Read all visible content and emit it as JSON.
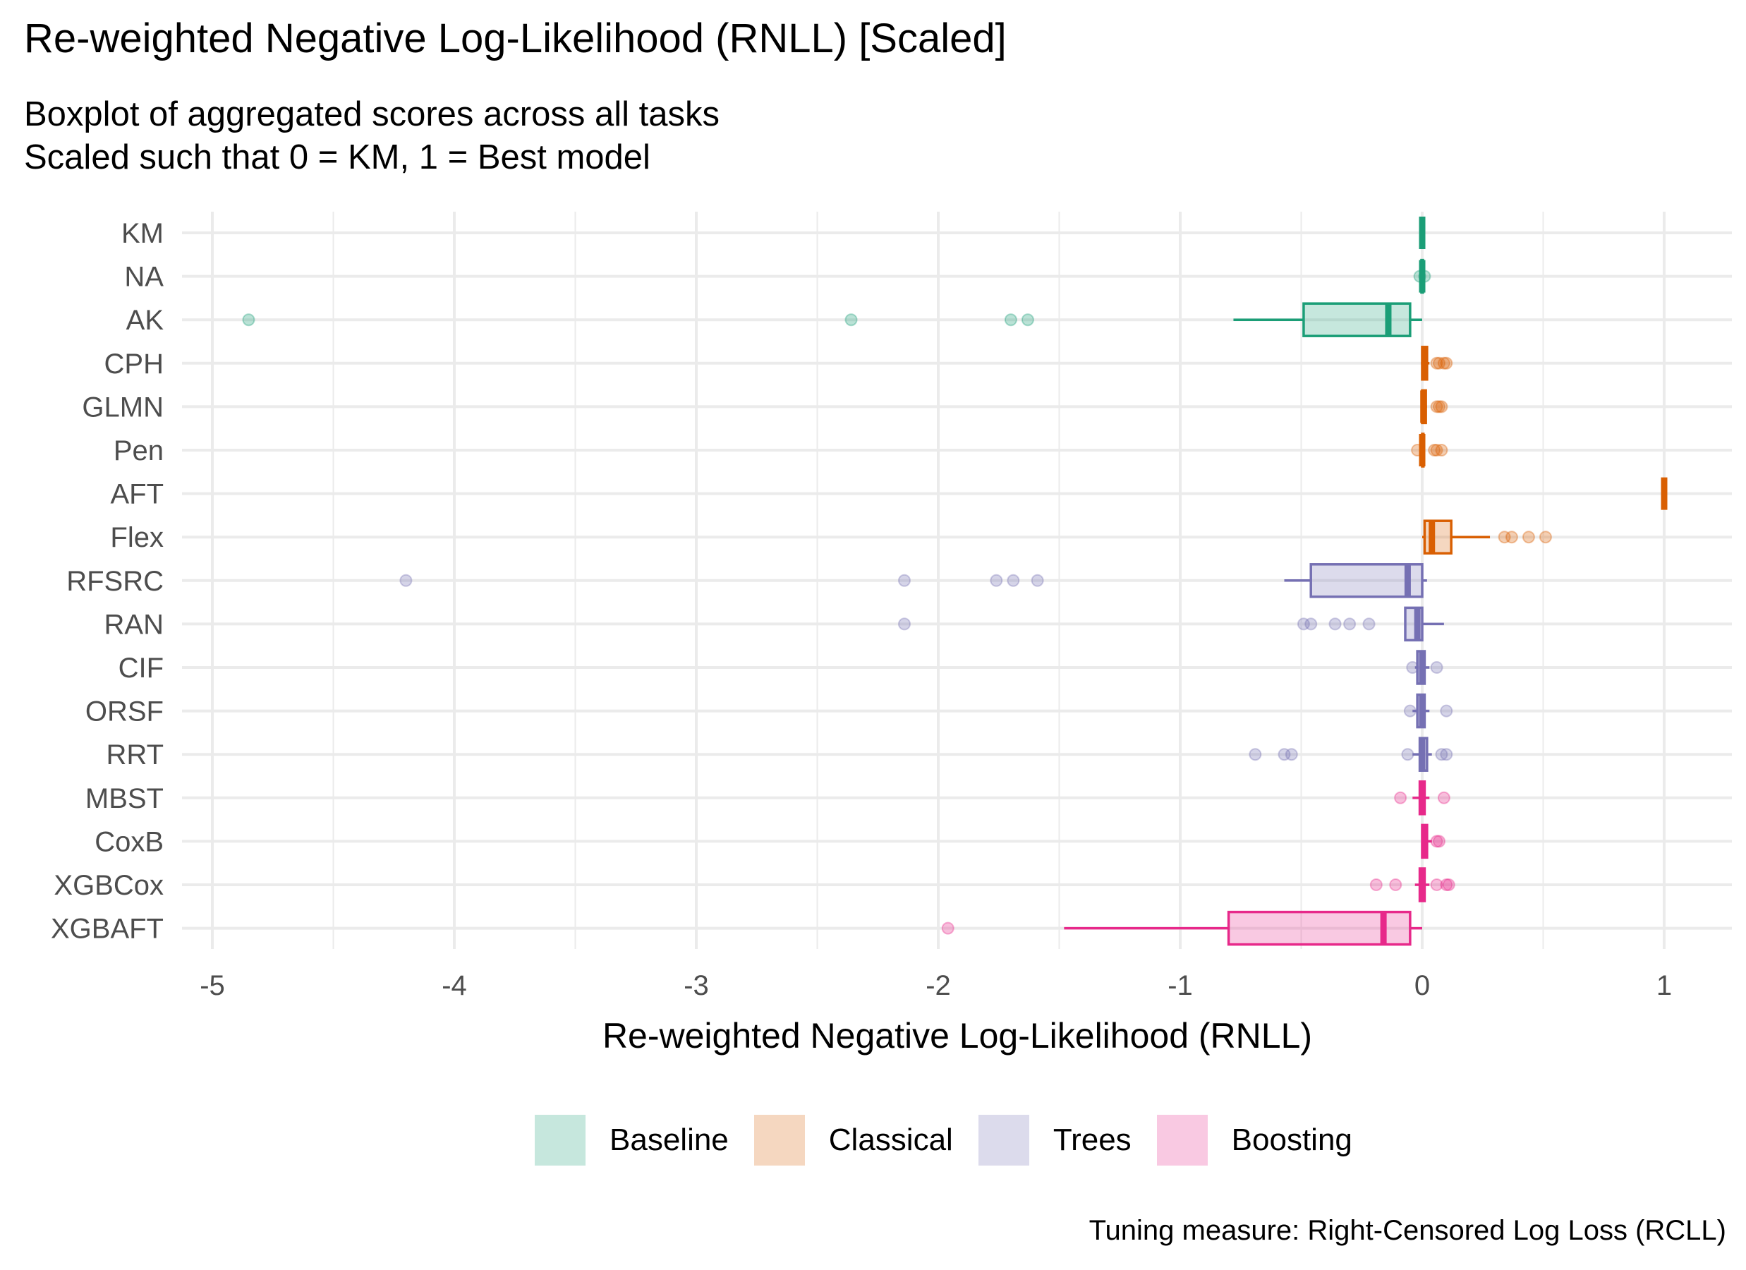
{
  "title": "Re-weighted Negative Log-Likelihood (RNLL) [Scaled]",
  "subtitle_lines": [
    "Boxplot of aggregated scores across all tasks",
    "Scaled such that 0 = KM, 1 = Best model"
  ],
  "caption": "Tuning measure: Right-Censored Log Loss (RCLL)",
  "legend": [
    {
      "label": "Baseline",
      "color": "#1B9E77"
    },
    {
      "label": "Classical",
      "color": "#D95F02"
    },
    {
      "label": "Trees",
      "color": "#7570B3"
    },
    {
      "label": "Boosting",
      "color": "#E7298A"
    }
  ],
  "chart_data": {
    "type": "boxplot",
    "orientation": "horizontal",
    "xlabel": "Re-weighted Negative Log-Likelihood (RNLL)",
    "ylabel": "",
    "xlim": [
      -5.0,
      1.25
    ],
    "xticks": [
      -5,
      -4,
      -3,
      -2,
      -1,
      0,
      1
    ],
    "grid": true,
    "legend_position": "bottom",
    "categories": [
      "KM",
      "NA",
      "AK",
      "CPH",
      "GLMN",
      "Pen",
      "AFT",
      "Flex",
      "RFSRC",
      "RAN",
      "CIF",
      "ORSF",
      "RRT",
      "MBST",
      "CoxB",
      "XGBCox",
      "XGBAFT"
    ],
    "series": [
      {
        "name": "KM",
        "group": "Baseline",
        "min": 0,
        "q1": 0,
        "median": 0,
        "q3": 0,
        "max": 0,
        "outliers": []
      },
      {
        "name": "NA",
        "group": "Baseline",
        "min": -0.005,
        "q1": -0.003,
        "median": 0,
        "q3": 0.003,
        "max": 0.005,
        "outliers": [
          -0.01,
          0.01
        ]
      },
      {
        "name": "AK",
        "group": "Baseline",
        "min": -0.78,
        "q1": -0.49,
        "median": -0.14,
        "q3": -0.05,
        "max": 0,
        "outliers": [
          -4.85,
          -2.36,
          -1.7,
          -1.63
        ]
      },
      {
        "name": "CPH",
        "group": "Classical",
        "min": -0.005,
        "q1": 0,
        "median": 0.01,
        "q3": 0.02,
        "max": 0.03,
        "outliers": [
          0.06,
          0.07,
          0.09,
          0.1
        ]
      },
      {
        "name": "GLMN",
        "group": "Classical",
        "min": -0.005,
        "q1": 0,
        "median": 0.005,
        "q3": 0.015,
        "max": 0.02,
        "outliers": [
          0.06,
          0.07,
          0.08
        ]
      },
      {
        "name": "Pen",
        "group": "Classical",
        "min": -0.005,
        "q1": 0,
        "median": 0,
        "q3": 0.005,
        "max": 0.01,
        "outliers": [
          -0.02,
          0.05,
          0.06,
          0.08
        ]
      },
      {
        "name": "AFT",
        "group": "Classical",
        "min": 1,
        "q1": 1,
        "median": 1,
        "q3": 1,
        "max": 1,
        "outliers": []
      },
      {
        "name": "Flex",
        "group": "Classical",
        "min": 0,
        "q1": 0.01,
        "median": 0.04,
        "q3": 0.12,
        "max": 0.28,
        "outliers": [
          0.34,
          0.37,
          0.44,
          0.51
        ]
      },
      {
        "name": "RFSRC",
        "group": "Trees",
        "min": -0.57,
        "q1": -0.46,
        "median": -0.06,
        "q3": 0,
        "max": 0.02,
        "outliers": [
          -4.2,
          -2.14,
          -1.76,
          -1.69,
          -1.59
        ]
      },
      {
        "name": "RAN",
        "group": "Trees",
        "min": -0.07,
        "q1": -0.07,
        "median": -0.02,
        "q3": 0,
        "max": 0.09,
        "outliers": [
          -2.14,
          -0.49,
          -0.46,
          -0.36,
          -0.3,
          -0.22
        ]
      },
      {
        "name": "CIF",
        "group": "Trees",
        "min": -0.03,
        "q1": -0.02,
        "median": 0,
        "q3": 0.01,
        "max": 0.03,
        "outliers": [
          -0.04,
          0.06
        ]
      },
      {
        "name": "ORSF",
        "group": "Trees",
        "min": -0.04,
        "q1": -0.02,
        "median": 0,
        "q3": 0.01,
        "max": 0.03,
        "outliers": [
          -0.05,
          0.1
        ]
      },
      {
        "name": "RRT",
        "group": "Trees",
        "min": -0.04,
        "q1": -0.01,
        "median": 0,
        "q3": 0.02,
        "max": 0.04,
        "outliers": [
          -0.69,
          -0.57,
          -0.54,
          -0.06,
          0.08,
          0.1
        ]
      },
      {
        "name": "MBST",
        "group": "Boosting",
        "min": -0.04,
        "q1": -0.01,
        "median": 0,
        "q3": 0.01,
        "max": 0.03,
        "outliers": [
          -0.09,
          0.09
        ]
      },
      {
        "name": "CoxB",
        "group": "Boosting",
        "min": 0,
        "q1": 0,
        "median": 0.01,
        "q3": 0.02,
        "max": 0.04,
        "outliers": [
          0.06,
          0.07
        ]
      },
      {
        "name": "XGBCox",
        "group": "Boosting",
        "min": -0.03,
        "q1": -0.01,
        "median": 0,
        "q3": 0.01,
        "max": 0.03,
        "outliers": [
          -0.19,
          -0.11,
          0.06,
          0.1,
          0.11
        ]
      },
      {
        "name": "XGBAFT",
        "group": "Boosting",
        "min": -1.48,
        "q1": -0.8,
        "median": -0.16,
        "q3": -0.05,
        "max": 0,
        "outliers": [
          -1.96
        ]
      }
    ]
  }
}
